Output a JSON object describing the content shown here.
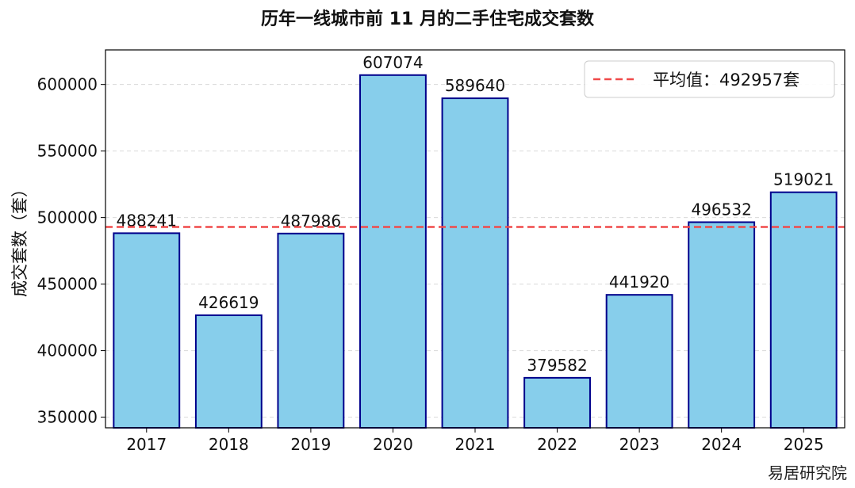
{
  "chart_data": {
    "type": "bar",
    "title": "历年一线城市前 11 月的二手住宅成交套数",
    "ylabel": "成交套数（套）",
    "xlabel": "",
    "categories": [
      "2017",
      "2018",
      "2019",
      "2020",
      "2021",
      "2022",
      "2023",
      "2024",
      "2025"
    ],
    "values": [
      488241,
      426619,
      487986,
      607074,
      589640,
      379582,
      441920,
      496532,
      519021
    ],
    "value_labels": [
      "488241",
      "426619",
      "487986",
      "607074",
      "589640",
      "379582",
      "441920",
      "496532",
      "519021"
    ],
    "ylim": [
      342000,
      626000
    ],
    "yticks": [
      350000,
      400000,
      450000,
      500000,
      550000,
      600000
    ],
    "ytick_labels": [
      "350000",
      "400000",
      "450000",
      "500000",
      "550000",
      "600000"
    ],
    "grid": "horizontal dashed",
    "legend_position": "top-right",
    "average": {
      "value": 492957,
      "label": "平均值：492957套",
      "color": "#f04a4a"
    },
    "bar_fill": "#87ceeb",
    "bar_edge": "#00008b"
  },
  "watermark": "易居研究院"
}
